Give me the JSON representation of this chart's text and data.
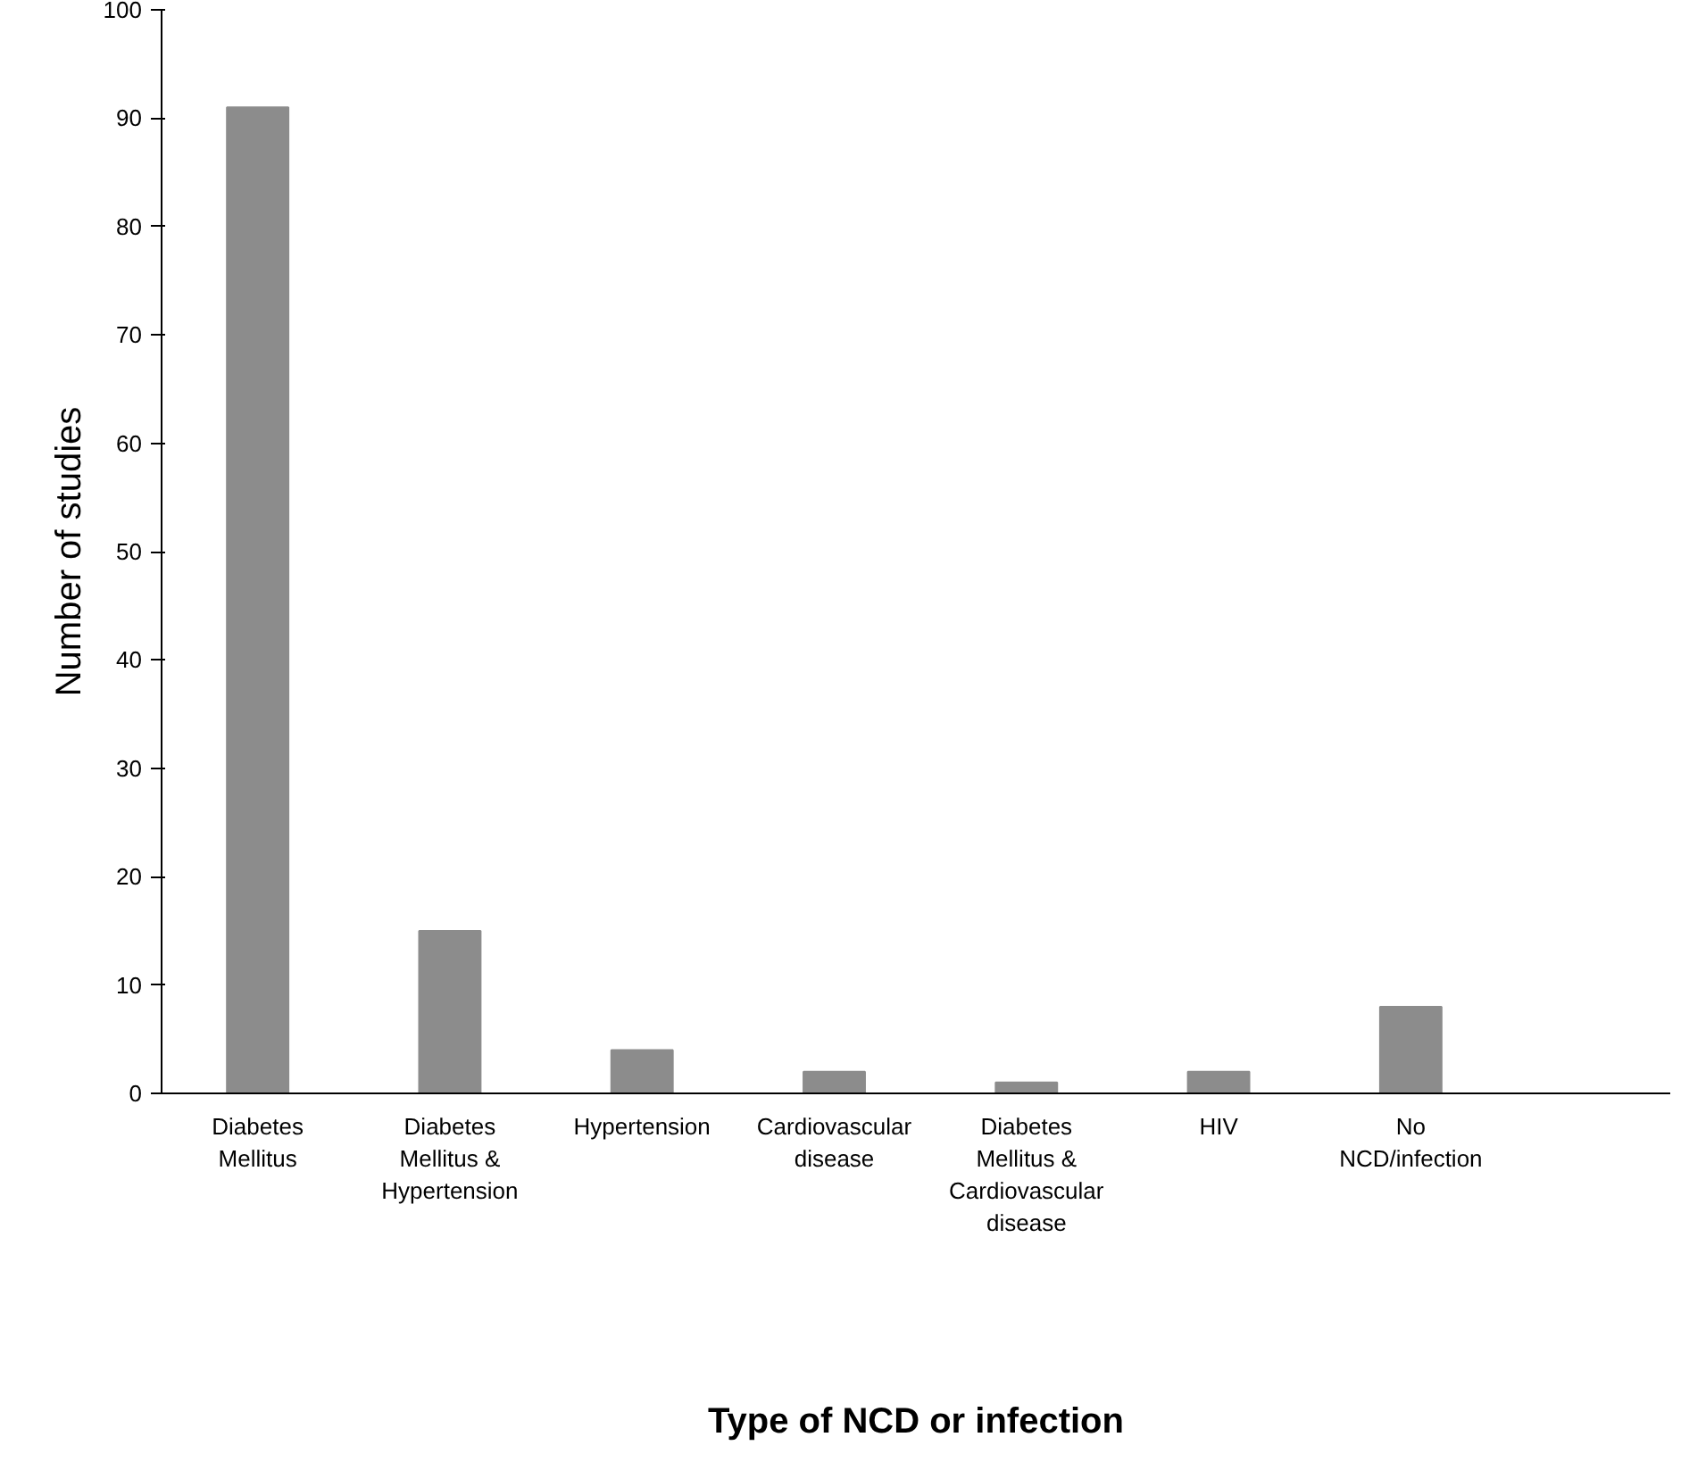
{
  "chart_data": {
    "type": "bar",
    "xlabel": "Type of NCD or infection",
    "ylabel": "Number of studies",
    "categories": [
      "Diabetes Mellitus",
      "Diabetes Mellitus & Hypertension",
      "Hypertension",
      "Cardiovascular disease",
      "Diabetes Mellitus & Cardiovascular disease",
      "HIV",
      "No NCD/infection"
    ],
    "values": [
      91,
      15,
      4,
      2,
      1,
      2,
      8
    ],
    "color": "#8c8c8c",
    "ylim": [
      0,
      100
    ],
    "yticks": [
      0,
      10,
      20,
      30,
      40,
      50,
      60,
      70,
      80,
      90,
      100
    ],
    "grid": false
  }
}
